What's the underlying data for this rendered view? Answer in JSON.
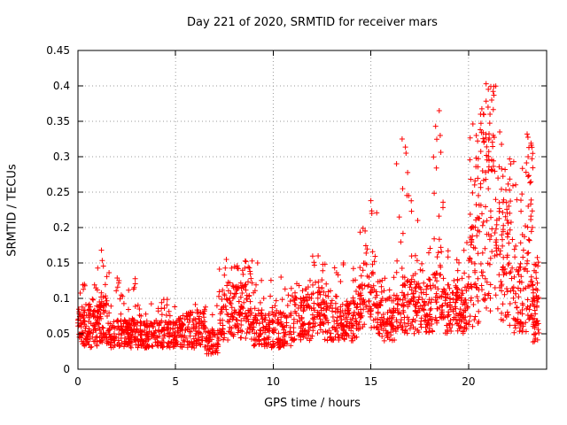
{
  "figure": {
    "background": "#ffffff",
    "text_color": "#000000",
    "border_color": "#000000",
    "grid_color": "#9a9a9a"
  },
  "chart_data": {
    "type": "scatter",
    "title": "Day 221 of 2020, SRMTID for receiver mars",
    "xlabel": "GPS time / hours",
    "ylabel": "SRMTID / TECUs",
    "xlim": [
      0,
      24
    ],
    "ylim": [
      0,
      0.45
    ],
    "xticks": {
      "values": [
        0,
        5,
        10,
        15,
        20
      ],
      "labels": [
        "0",
        "5",
        "10",
        "15",
        "20"
      ]
    },
    "yticks": {
      "values": [
        0,
        0.05,
        0.1,
        0.15,
        0.2,
        0.25,
        0.3,
        0.35,
        0.4,
        0.45
      ],
      "labels": [
        "0",
        "0.05",
        "0.1",
        "0.15",
        "0.2",
        "0.25",
        "0.3",
        "0.35",
        "0.4",
        "0.45"
      ]
    },
    "grid": true,
    "legend": "none",
    "marker": "plus",
    "marker_color": "#ff0000",
    "seed": 221,
    "scatter_model": {
      "description": "Dense 24h scatter (~2200 epochs) of SRMTID values. Quiet band 0.03-0.10 TECU for most of the day; enhanced activity 7-9h (to ~0.16), spike near 15h (~0.24), 16.5-17h (~0.33), 18.5h (~0.365), strong disturbed period 20-22h peaking 0.40 near 21h, and a burst near 23h (~0.33). Segments give x-range, point count, dense band lo-mid, tail maximum hi, and tail probability.",
      "segments": [
        {
          "x0": 0.0,
          "x1": 1.0,
          "n": 120,
          "lo": 0.03,
          "mid": 0.09,
          "hi": 0.12,
          "tail": 0.1
        },
        {
          "x0": 1.0,
          "x1": 1.6,
          "n": 70,
          "lo": 0.035,
          "mid": 0.1,
          "hi": 0.165,
          "tail": 0.22
        },
        {
          "x0": 1.6,
          "x1": 3.0,
          "n": 150,
          "lo": 0.03,
          "mid": 0.07,
          "hi": 0.13,
          "tail": 0.12
        },
        {
          "x0": 3.0,
          "x1": 5.0,
          "n": 190,
          "lo": 0.03,
          "mid": 0.068,
          "hi": 0.1,
          "tail": 0.08
        },
        {
          "x0": 5.0,
          "x1": 6.5,
          "n": 140,
          "lo": 0.03,
          "mid": 0.08,
          "hi": 0.11,
          "tail": 0.1
        },
        {
          "x0": 6.5,
          "x1": 7.2,
          "n": 60,
          "lo": 0.02,
          "mid": 0.06,
          "hi": 0.09,
          "tail": 0.1
        },
        {
          "x0": 7.2,
          "x1": 9.0,
          "n": 180,
          "lo": 0.04,
          "mid": 0.115,
          "hi": 0.155,
          "tail": 0.18
        },
        {
          "x0": 9.0,
          "x1": 11.0,
          "n": 180,
          "lo": 0.03,
          "mid": 0.08,
          "hi": 0.13,
          "tail": 0.1
        },
        {
          "x0": 11.0,
          "x1": 12.0,
          "n": 95,
          "lo": 0.04,
          "mid": 0.1,
          "hi": 0.13,
          "tail": 0.15
        },
        {
          "x0": 12.0,
          "x1": 12.6,
          "n": 60,
          "lo": 0.05,
          "mid": 0.11,
          "hi": 0.16,
          "tail": 0.28
        },
        {
          "x0": 12.6,
          "x1": 14.4,
          "n": 165,
          "lo": 0.04,
          "mid": 0.095,
          "hi": 0.15,
          "tail": 0.12
        },
        {
          "x0": 14.4,
          "x1": 15.3,
          "n": 85,
          "lo": 0.05,
          "mid": 0.12,
          "hi": 0.24,
          "tail": 0.22
        },
        {
          "x0": 15.3,
          "x1": 16.3,
          "n": 95,
          "lo": 0.04,
          "mid": 0.105,
          "hi": 0.14,
          "tail": 0.15
        },
        {
          "x0": 16.3,
          "x1": 17.1,
          "n": 80,
          "lo": 0.05,
          "mid": 0.13,
          "hi": 0.33,
          "tail": 0.18
        },
        {
          "x0": 17.1,
          "x1": 18.2,
          "n": 105,
          "lo": 0.05,
          "mid": 0.12,
          "hi": 0.2,
          "tail": 0.15
        },
        {
          "x0": 18.2,
          "x1": 18.8,
          "n": 60,
          "lo": 0.06,
          "mid": 0.15,
          "hi": 0.36,
          "tail": 0.28
        },
        {
          "x0": 18.8,
          "x1": 20.0,
          "n": 125,
          "lo": 0.05,
          "mid": 0.12,
          "hi": 0.18,
          "tail": 0.15
        },
        {
          "x0": 20.0,
          "x1": 20.6,
          "n": 70,
          "lo": 0.06,
          "mid": 0.2,
          "hi": 0.35,
          "tail": 0.38
        },
        {
          "x0": 20.6,
          "x1": 21.4,
          "n": 95,
          "lo": 0.08,
          "mid": 0.28,
          "hi": 0.4,
          "tail": 0.45
        },
        {
          "x0": 21.4,
          "x1": 22.2,
          "n": 90,
          "lo": 0.06,
          "mid": 0.22,
          "hi": 0.34,
          "tail": 0.38
        },
        {
          "x0": 22.2,
          "x1": 23.0,
          "n": 80,
          "lo": 0.05,
          "mid": 0.15,
          "hi": 0.3,
          "tail": 0.28
        },
        {
          "x0": 23.0,
          "x1": 23.3,
          "n": 45,
          "lo": 0.06,
          "mid": 0.2,
          "hi": 0.33,
          "tail": 0.45
        },
        {
          "x0": 23.3,
          "x1": 23.6,
          "n": 50,
          "lo": 0.035,
          "mid": 0.12,
          "hi": 0.16,
          "tail": 0.18
        }
      ],
      "peaks": [
        [
          1.2,
          0.168
        ],
        [
          2.1,
          0.125
        ],
        [
          7.6,
          0.155
        ],
        [
          8.6,
          0.152
        ],
        [
          9.2,
          0.15
        ],
        [
          10.4,
          0.13
        ],
        [
          12.3,
          0.16
        ],
        [
          13.6,
          0.15
        ],
        [
          15.0,
          0.238
        ],
        [
          15.05,
          0.22
        ],
        [
          16.6,
          0.325
        ],
        [
          16.8,
          0.305
        ],
        [
          17.4,
          0.21
        ],
        [
          18.5,
          0.365
        ],
        [
          18.55,
          0.33
        ],
        [
          20.4,
          0.33
        ],
        [
          20.9,
          0.403
        ],
        [
          21.0,
          0.37
        ],
        [
          21.1,
          0.36
        ],
        [
          21.6,
          0.335
        ],
        [
          23.0,
          0.332
        ],
        [
          23.05,
          0.3
        ]
      ]
    }
  }
}
